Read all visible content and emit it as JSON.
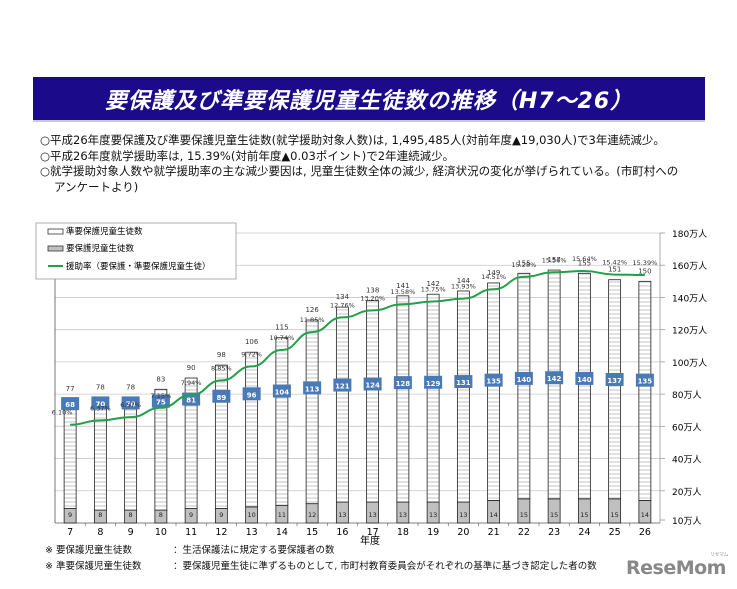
{
  "title": "要保護及び準要保護児童生徒数の推移（H7〜26）",
  "bullets": [
    "○平成26年度要保護及び準要保護児童生徒数(就学援助対象人数)は, 1,495,485人(対前年度▲19,030人)で3年連続減少。",
    "○平成26年度就学援助率は, 15.39%(対前年度▲0.03ポイント)で2年連続減少。",
    "○就学援助対象人数や就学援助率の主な減少要因は, 児童生徒数全体の減少, 経済状況の変化が挙げられている。(市町村へのアンケートより)"
  ],
  "notes": [
    {
      "key": "※ 要保護児童生徒数",
      "value": "：生活保護法に規定する要保護者の数"
    },
    {
      "key": "※ 準要保護児童生徒数",
      "value": "：要保護児童生徒に準ずるものとして, 市町村教育委員会がそれぞれの基準に基づき認定した者の数"
    }
  ],
  "logo": {
    "text": "ReseMom",
    "sub": "リセマム"
  },
  "chart_data": {
    "type": "bar",
    "stacked": true,
    "title": "",
    "xlabel": "年度",
    "ylabel": "",
    "categories": [
      "7",
      "8",
      "9",
      "10",
      "11",
      "12",
      "13",
      "14",
      "15",
      "16",
      "17",
      "18",
      "19",
      "20",
      "21",
      "22",
      "23",
      "24",
      "25",
      "26"
    ],
    "series": [
      {
        "name": "要保護児童生徒数",
        "kind": "bar",
        "color": "#c0c0c0",
        "values": [
          9,
          8,
          8,
          8,
          9,
          9,
          10,
          11,
          12,
          13,
          13,
          13,
          13,
          13,
          14,
          15,
          15,
          15,
          15,
          14
        ]
      },
      {
        "name": "準要保護児童生徒数",
        "kind": "bar",
        "color": "#ffffff",
        "values": [
          68,
          70,
          70,
          75,
          81,
          89,
          96,
          104,
          113,
          121,
          124,
          128,
          129,
          131,
          135,
          140,
          142,
          140,
          137,
          135
        ]
      },
      {
        "name": "援助率（要保護・準要保護児童生徒）",
        "kind": "line",
        "color": "#22a04a",
        "values": [
          6.1,
          6.37,
          6.57,
          7.15,
          7.94,
          8.85,
          9.72,
          10.74,
          11.85,
          12.76,
          13.2,
          13.58,
          13.75,
          13.93,
          14.51,
          15.28,
          15.56,
          15.64,
          15.42,
          15.39
        ],
        "labels": [
          "6.10%",
          "6.37%",
          "6.57%",
          "7.15%",
          "7.94%",
          "8.85%",
          "9.72%",
          "10.74%",
          "11.85%",
          "12.76%",
          "13.20%",
          "13.58%",
          "13.75%",
          "13.93%",
          "14.51%",
          "15.28%",
          "15.56%",
          "15.64%",
          "15.42%",
          "15.39%"
        ]
      }
    ],
    "totals": [
      77,
      78,
      78,
      83,
      90,
      98,
      106,
      115,
      126,
      134,
      138,
      141,
      142,
      144,
      149,
      155,
      157,
      155,
      151,
      150
    ],
    "legend": {
      "placement": "top-left",
      "entries": [
        "準要保護児童生徒数",
        "要保護児童生徒数",
        "援助率（要保護・準要保護児童生徒）"
      ]
    },
    "y_axis_right": {
      "ticks": [
        "10万人",
        "20万人",
        "40万人",
        "60万人",
        "80万人",
        "100万人",
        "120万人",
        "140万人",
        "160万人",
        "180万人"
      ],
      "range": [
        0,
        180
      ],
      "unit": "万人"
    },
    "rate_range": [
      0,
      18
    ],
    "grid": true,
    "label_box_color": "#4a7ab5"
  }
}
